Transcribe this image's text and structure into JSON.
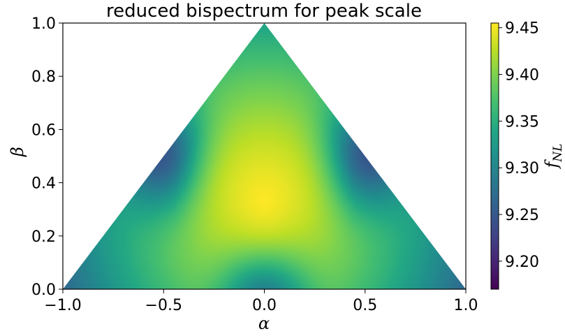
{
  "chart_data": {
    "type": "heatmap",
    "title": "reduced bispectrum for peak scale",
    "xlabel": "α",
    "ylabel": "β",
    "xlim": [
      -1.0,
      1.0
    ],
    "ylim": [
      0.0,
      1.0
    ],
    "xticks": [
      "−1.0",
      "−0.5",
      "0.0",
      "0.5",
      "1.0"
    ],
    "xtick_values": [
      -1.0,
      -0.5,
      0.0,
      0.5,
      1.0
    ],
    "yticks": [
      "0.0",
      "0.2",
      "0.4",
      "0.6",
      "0.8",
      "1.0"
    ],
    "ytick_values": [
      0.0,
      0.2,
      0.4,
      0.6,
      0.8,
      1.0
    ],
    "domain": "triangle",
    "triangle_vertices": [
      [
        -1.0,
        0.0
      ],
      [
        1.0,
        0.0
      ],
      [
        0.0,
        1.0
      ]
    ],
    "field": {
      "peak_location": [
        0.0,
        0.333
      ],
      "peak_value": 9.455,
      "corner_value": 9.27,
      "edge_midpoint_value": 9.17
    },
    "colorbar": {
      "label_main": "f",
      "label_sub": "NL",
      "colormap": "viridis",
      "vmin": 9.17,
      "vmax": 9.455,
      "ticks": [
        "9.20",
        "9.25",
        "9.30",
        "9.35",
        "9.40",
        "9.45"
      ],
      "tick_values": [
        9.2,
        9.25,
        9.3,
        9.35,
        9.4,
        9.45
      ]
    },
    "grid": false
  }
}
